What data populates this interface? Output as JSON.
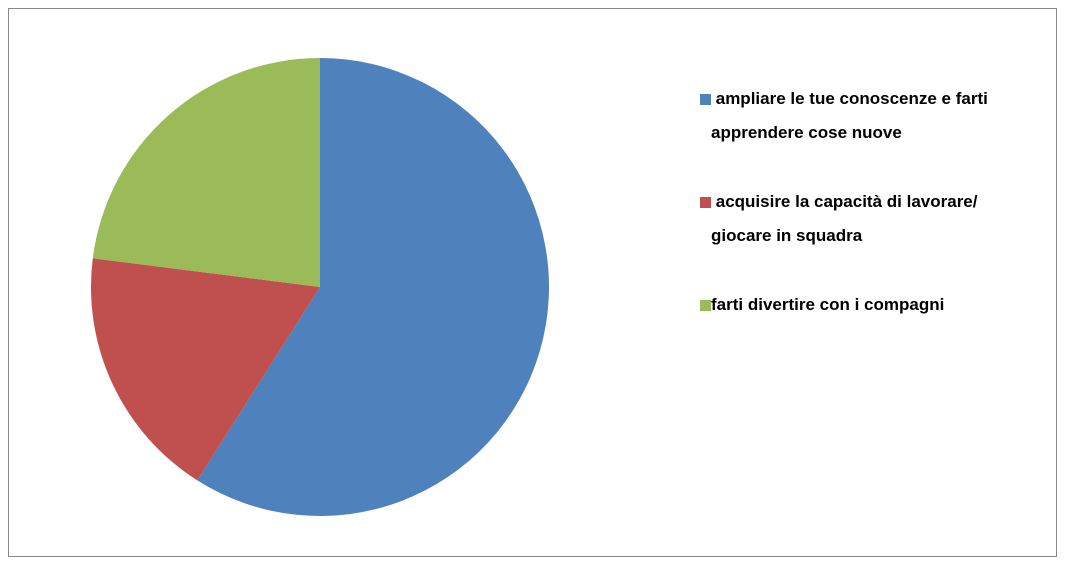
{
  "chart_data": {
    "type": "pie",
    "categories": [
      " ampliare le tue conoscenze e farti apprendere cose nuove",
      " acquisire la capacità di lavorare/ giocare in squadra",
      "farti divertire con i compagni"
    ],
    "values": [
      59,
      18,
      23
    ],
    "colors": [
      "#4f81bd",
      "#c0504d",
      "#9bbb59"
    ],
    "legend": "right"
  }
}
